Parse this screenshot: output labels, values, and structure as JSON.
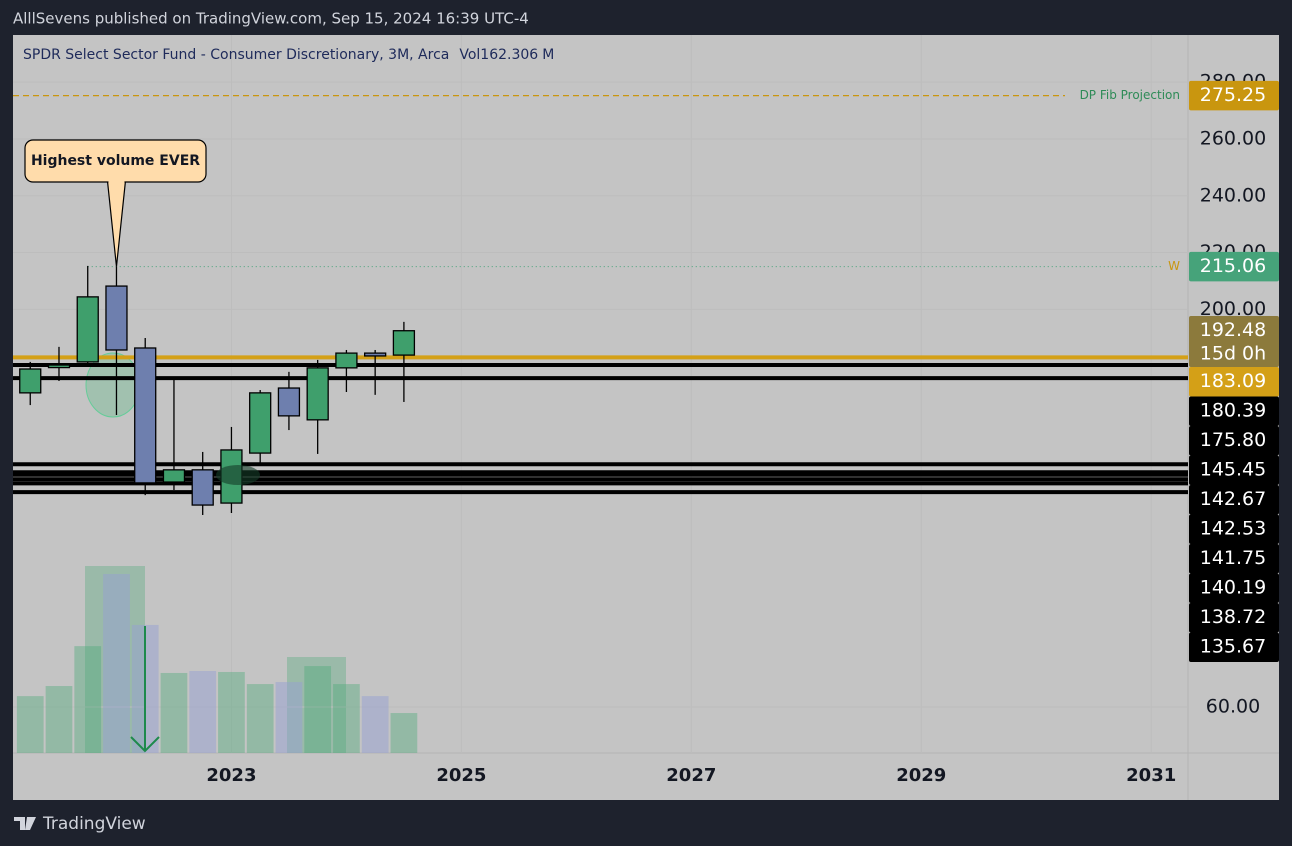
{
  "header": {
    "text": "AlllSevens published on TradingView.com, Sep 15, 2024 16:39 UTC-4"
  },
  "chart_data": {
    "type": "candlestick",
    "title": "SPDR Select Sector Fund - Consumer Discretionary, 3M, Arca",
    "volume_label": "Vol",
    "volume_unit": "M",
    "x": [
      2021.25,
      2021.5,
      2021.75,
      2022.0,
      2022.25,
      2022.5,
      2022.75,
      2023.0,
      2023.25,
      2023.5,
      2023.75,
      2024.0,
      2024.25,
      2024.5
    ],
    "open": [
      170.6,
      179.5,
      181.5,
      208.2,
      186.4,
      139.2,
      143.5,
      131.8,
      149.4,
      172.3,
      161.1,
      179.4,
      184.6,
      183.9
    ],
    "high": [
      181.5,
      186.8,
      215.3,
      215.06,
      189.9,
      175.8,
      149.8,
      158.6,
      171.6,
      178.0,
      182.2,
      185.7,
      185.7,
      195.6
    ],
    "low": [
      166.3,
      174.8,
      180.8,
      162.8,
      134.6,
      136.4,
      127.6,
      128.3,
      145.2,
      157.5,
      149.1,
      170.9,
      169.9,
      167.4
    ],
    "close": [
      179.0,
      180.4,
      204.4,
      185.7,
      138.9,
      143.5,
      131.1,
      150.5,
      170.6,
      162.5,
      179.4,
      184.6,
      183.6,
      192.48
    ],
    "volume": [
      231,
      272,
      434,
      727,
      520,
      325,
      333,
      329,
      280,
      288,
      353,
      280,
      231,
      162.306
    ],
    "up_color": "#3f9f6c",
    "down_color": "#6e7fae",
    "up_volume_color": "rgba(76,170,120,0.4)",
    "down_volume_color": "rgba(150,160,210,0.5)",
    "volume_ylim": [
      0,
      800
    ],
    "xlim": [
      2021.1,
      2031.32
    ],
    "xticks": [
      2023,
      2025,
      2027,
      2029,
      2031
    ],
    "ylim": [
      43.8,
      296.6
    ],
    "yticks": [
      {
        "value": 60,
        "label": "60.00"
      },
      {
        "value": 200,
        "label": "200.00"
      },
      {
        "value": 220,
        "label": "220.00"
      },
      {
        "value": 240,
        "label": "240.00"
      },
      {
        "value": 260,
        "label": "260.00"
      },
      {
        "value": 280,
        "label": "280.00"
      }
    ],
    "grid": true,
    "levels": [
      {
        "value": 275.25,
        "name": "DP Fib Projection",
        "color": "#c9960f",
        "style": "dashed"
      },
      {
        "value": 215.06,
        "name": "W",
        "color": "#46a37a",
        "style": "dotted"
      },
      {
        "value": 183.09,
        "color": "#d4a017",
        "style": "solid"
      },
      {
        "value": 180.39,
        "color": "#000000",
        "style": "solid"
      },
      {
        "value": 175.8,
        "label": "175.80",
        "color": "#000000",
        "style": "solid"
      },
      {
        "value": 145.45,
        "color": "#000000",
        "style": "solid"
      },
      {
        "value": 142.67,
        "color": "#000000",
        "style": "solid"
      },
      {
        "value": 142.53,
        "color": "#000000",
        "style": "solid"
      },
      {
        "value": 141.75,
        "color": "#000000",
        "style": "solid"
      },
      {
        "value": 140.19,
        "color": "#000000",
        "style": "solid"
      },
      {
        "value": 138.72,
        "color": "#000000",
        "style": "solid"
      },
      {
        "value": 135.67,
        "color": "#000000",
        "style": "solid"
      }
    ],
    "last_price_color": "#8c7a3c",
    "countdown": "15d 0h",
    "annotation": {
      "text": "Highest volume EVER",
      "x": 2022.0,
      "y": 215.06
    }
  },
  "footer": {
    "brand": "TradingView"
  }
}
